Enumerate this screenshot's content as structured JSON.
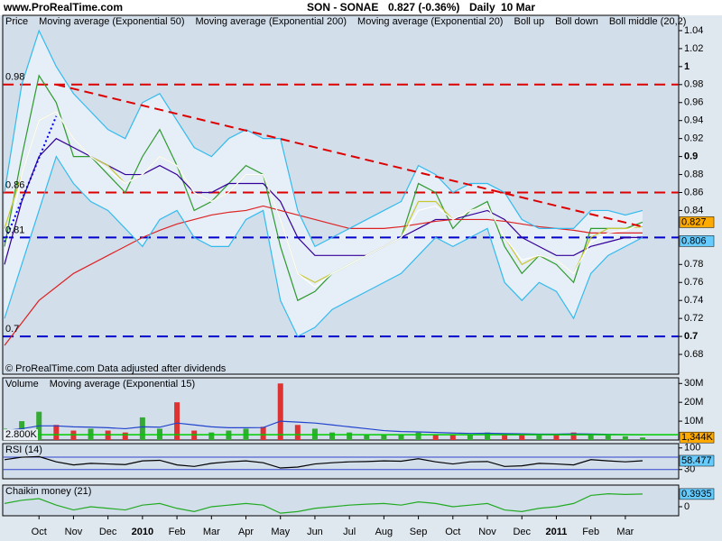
{
  "header": {
    "site": "www.ProRealTime.com",
    "instrument": "SON - SONAE",
    "quote": "0.827 (-0.36%)",
    "period": "Daily",
    "date": "10 Mar"
  },
  "chart_data": [
    {
      "type": "line",
      "background": "#d3deeb",
      "footnote": "© ProRealTime.com Data adjusted after dividends",
      "ylim": [
        0.658,
        1.057
      ],
      "bold_major": true,
      "yticks": [
        0.68,
        0.7,
        0.72,
        0.74,
        0.76,
        0.78,
        0.84,
        0.86,
        0.88,
        0.9,
        0.92,
        0.94,
        0.96,
        0.98,
        1,
        1.02,
        1.04
      ],
      "series": [
        {
          "name": "Price",
          "color": "#2f9a2f",
          "legend_color": "#000000",
          "values": [
            0.8,
            0.9,
            0.99,
            0.96,
            0.9,
            0.9,
            0.88,
            0.86,
            0.9,
            0.93,
            0.89,
            0.84,
            0.85,
            0.87,
            0.89,
            0.88,
            0.8,
            0.74,
            0.75,
            0.77,
            0.78,
            0.79,
            0.8,
            0.81,
            0.87,
            0.86,
            0.82,
            0.84,
            0.85,
            0.8,
            0.77,
            0.79,
            0.78,
            0.76,
            0.82,
            0.82,
            0.82,
            0.827
          ]
        },
        {
          "name": "Moving average (Exponential 50)",
          "color": "#330099",
          "values": [
            0.78,
            0.85,
            0.9,
            0.92,
            0.91,
            0.9,
            0.89,
            0.88,
            0.88,
            0.89,
            0.88,
            0.86,
            0.86,
            0.87,
            0.87,
            0.87,
            0.85,
            0.81,
            0.79,
            0.79,
            0.79,
            0.79,
            0.8,
            0.81,
            0.82,
            0.83,
            0.83,
            0.835,
            0.84,
            0.83,
            0.81,
            0.8,
            0.79,
            0.79,
            0.8,
            0.805,
            0.81,
            0.81
          ]
        },
        {
          "name": "Moving average (Exponential 200)",
          "color": "#dd2222",
          "values": [
            0.69,
            0.715,
            0.74,
            0.755,
            0.77,
            0.78,
            0.79,
            0.8,
            0.81,
            0.818,
            0.825,
            0.83,
            0.835,
            0.838,
            0.84,
            0.845,
            0.84,
            0.835,
            0.83,
            0.825,
            0.82,
            0.82,
            0.82,
            0.822,
            0.825,
            0.828,
            0.83,
            0.83,
            0.83,
            0.828,
            0.825,
            0.822,
            0.82,
            0.818,
            0.815,
            0.815,
            0.815,
            0.815
          ]
        },
        {
          "name": "Moving average (Exponential 20)",
          "color": "#c8c832",
          "values": [
            0.82,
            0.88,
            0.94,
            0.95,
            0.92,
            0.9,
            0.89,
            0.87,
            0.88,
            0.9,
            0.89,
            0.86,
            0.85,
            0.86,
            0.88,
            0.88,
            0.83,
            0.77,
            0.76,
            0.77,
            0.78,
            0.79,
            0.8,
            0.81,
            0.85,
            0.85,
            0.83,
            0.84,
            0.845,
            0.81,
            0.78,
            0.79,
            0.785,
            0.77,
            0.81,
            0.82,
            0.82,
            0.822
          ]
        },
        {
          "name": "Boll up",
          "color": "#33bbee",
          "fill_to_next": "#e6eef7",
          "values": [
            0.86,
            0.98,
            1.04,
            1.0,
            0.97,
            0.95,
            0.93,
            0.92,
            0.96,
            0.97,
            0.94,
            0.91,
            0.9,
            0.92,
            0.93,
            0.92,
            0.92,
            0.84,
            0.8,
            0.81,
            0.82,
            0.83,
            0.84,
            0.85,
            0.89,
            0.88,
            0.86,
            0.87,
            0.87,
            0.86,
            0.83,
            0.82,
            0.82,
            0.82,
            0.84,
            0.84,
            0.835,
            0.84
          ]
        },
        {
          "name": "Boll down",
          "color": "#33bbee",
          "values": [
            0.72,
            0.78,
            0.84,
            0.9,
            0.87,
            0.85,
            0.84,
            0.82,
            0.8,
            0.83,
            0.84,
            0.81,
            0.8,
            0.8,
            0.83,
            0.84,
            0.74,
            0.7,
            0.71,
            0.73,
            0.74,
            0.75,
            0.76,
            0.77,
            0.79,
            0.81,
            0.8,
            0.81,
            0.82,
            0.76,
            0.74,
            0.76,
            0.75,
            0.72,
            0.77,
            0.79,
            0.8,
            0.81
          ]
        },
        {
          "name": "Boll middle (20,2)",
          "color": "#ffffff",
          "values": [
            0.79,
            0.88,
            0.94,
            0.95,
            0.92,
            0.9,
            0.885,
            0.87,
            0.88,
            0.9,
            0.89,
            0.86,
            0.85,
            0.86,
            0.88,
            0.88,
            0.83,
            0.77,
            0.755,
            0.77,
            0.78,
            0.79,
            0.8,
            0.81,
            0.84,
            0.845,
            0.83,
            0.84,
            0.845,
            0.81,
            0.785,
            0.79,
            0.785,
            0.77,
            0.805,
            0.815,
            0.818,
            0.825
          ]
        }
      ],
      "levels": [
        {
          "value": 0.98,
          "color": "#dd0000",
          "labeled": true
        },
        {
          "value": 0.86,
          "color": "#dd0000",
          "labeled": true
        },
        {
          "value": 0.81,
          "color": "#0000cc",
          "labeled": true
        },
        {
          "value": 0.7,
          "color": "#0000cc",
          "labeled": true
        }
      ],
      "trendlines": [
        {
          "color": "#dd0000",
          "dash": "10,6",
          "values": [
            null,
            null,
            null,
            0.98,
            null,
            null,
            null,
            null,
            null,
            null,
            null,
            null,
            null,
            null,
            null,
            null,
            null,
            null,
            null,
            null,
            null,
            null,
            null,
            null,
            null,
            null,
            null,
            null,
            null,
            null,
            null,
            null,
            null,
            null,
            null,
            null,
            null,
            0.822
          ]
        },
        {
          "color": "#0000dd",
          "dash": "2,3",
          "values": [
            0.805,
            null,
            null,
            0.945,
            null,
            null,
            null,
            null,
            null,
            null,
            null,
            null,
            null,
            null,
            null,
            null,
            null,
            null,
            null,
            null,
            null,
            null,
            null,
            null,
            null,
            null,
            null,
            null,
            null,
            null,
            null,
            null,
            null,
            null,
            null,
            null,
            null,
            null
          ]
        }
      ],
      "markers": [
        {
          "value": 0.827,
          "color": "#ffaa00",
          "side": "right"
        },
        {
          "value": 0.806,
          "color": "#66ccff",
          "side": "right"
        }
      ]
    },
    {
      "type": "bar",
      "background": "#d3deeb",
      "ylim": [
        0,
        33000000
      ],
      "up_color": "#33aa33",
      "down_color": "#dd3333",
      "yticks": [
        {
          "value": 10000000,
          "label": "10M"
        },
        {
          "value": 20000000,
          "label": "20M"
        },
        {
          "value": 30000000,
          "label": "30M"
        }
      ],
      "series": [
        {
          "name": "Volume",
          "color": "#cc3333",
          "values": [
            6000000,
            10000000,
            15000000,
            8000000,
            5000000,
            6000000,
            5000000,
            4000000,
            12000000,
            6000000,
            20000000,
            5000000,
            4000000,
            5000000,
            6000000,
            7000000,
            30000000,
            8000000,
            6000000,
            4000000,
            4000000,
            3000000,
            3000000,
            3000000,
            4000000,
            3000000,
            3000000,
            3000000,
            4000000,
            3000000,
            3000000,
            2500000,
            3000000,
            4000000,
            3000000,
            2500000,
            2000000,
            1344000
          ]
        },
        {
          "name": "Moving average (Exponential 15)",
          "color": "#2244cc",
          "style": "line",
          "values": [
            5000000,
            6000000,
            7500000,
            7500000,
            7000000,
            6800000,
            6500000,
            6000000,
            7000000,
            6800000,
            9000000,
            8000000,
            7000000,
            6500000,
            6500000,
            6600000,
            10000000,
            9500000,
            9000000,
            8000000,
            7000000,
            6000000,
            5000000,
            4500000,
            4300000,
            4000000,
            3700000,
            3500000,
            3600000,
            3400000,
            3300000,
            3100000,
            3100000,
            3300000,
            3200000,
            3000000,
            2900000,
            2800000
          ]
        }
      ],
      "markers": [
        {
          "value": 2800000,
          "label": "2.800K",
          "color": "#00cc00",
          "side": "left"
        },
        {
          "value": 1344000,
          "label": "1,344K",
          "color": "#ffaa00",
          "side": "right"
        }
      ]
    },
    {
      "type": "line",
      "background": "#d3deeb",
      "ylim": [
        0,
        114
      ],
      "yticks": [
        30,
        100
      ],
      "series": [
        {
          "name": "RSI (14)",
          "color": "#000000",
          "values": [
            62,
            70,
            72,
            55,
            45,
            50,
            48,
            46,
            58,
            60,
            45,
            40,
            50,
            55,
            58,
            52,
            35,
            38,
            48,
            52,
            55,
            56,
            58,
            57,
            65,
            55,
            48,
            55,
            56,
            40,
            42,
            50,
            48,
            45,
            62,
            58,
            55,
            58.477
          ]
        }
      ],
      "levels": [
        {
          "value": 70,
          "color": "#3344cc",
          "labeled": false
        },
        {
          "value": 30,
          "color": "#3344cc",
          "labeled": false
        }
      ],
      "markers": [
        {
          "value": 58.477,
          "color": "#66ccff",
          "side": "right"
        }
      ]
    },
    {
      "type": "line",
      "background": "#d3deeb",
      "ylim": [
        -0.28,
        0.67
      ],
      "yticks": [
        0
      ],
      "categories": [
        null,
        null,
        "Oct",
        null,
        "Nov",
        null,
        "Dec",
        null,
        "2010",
        null,
        "Feb",
        null,
        "Mar",
        null,
        "Apr",
        null,
        "May",
        null,
        "Jun",
        null,
        "Jul",
        null,
        "Aug",
        null,
        "Sep",
        null,
        "Oct",
        null,
        "Nov",
        null,
        "Dec",
        null,
        "2011",
        null,
        "Feb",
        null,
        "Mar",
        null
      ],
      "series": [
        {
          "name": "Chaikin money (21)",
          "color": "#22aa22",
          "values": [
            0.1,
            0.2,
            0.25,
            0.05,
            -0.1,
            0.0,
            -0.05,
            -0.1,
            0.05,
            0.1,
            -0.05,
            -0.15,
            0.0,
            0.05,
            0.1,
            0.05,
            -0.2,
            -0.15,
            -0.05,
            0.0,
            0.05,
            0.08,
            0.1,
            0.05,
            0.15,
            0.1,
            0.0,
            0.05,
            0.1,
            -0.1,
            -0.15,
            -0.05,
            0.0,
            0.1,
            0.35,
            0.4,
            0.38,
            0.3935
          ]
        }
      ],
      "markers": [
        {
          "value": 0.3935,
          "color": "#66ccff",
          "side": "right"
        }
      ]
    }
  ]
}
